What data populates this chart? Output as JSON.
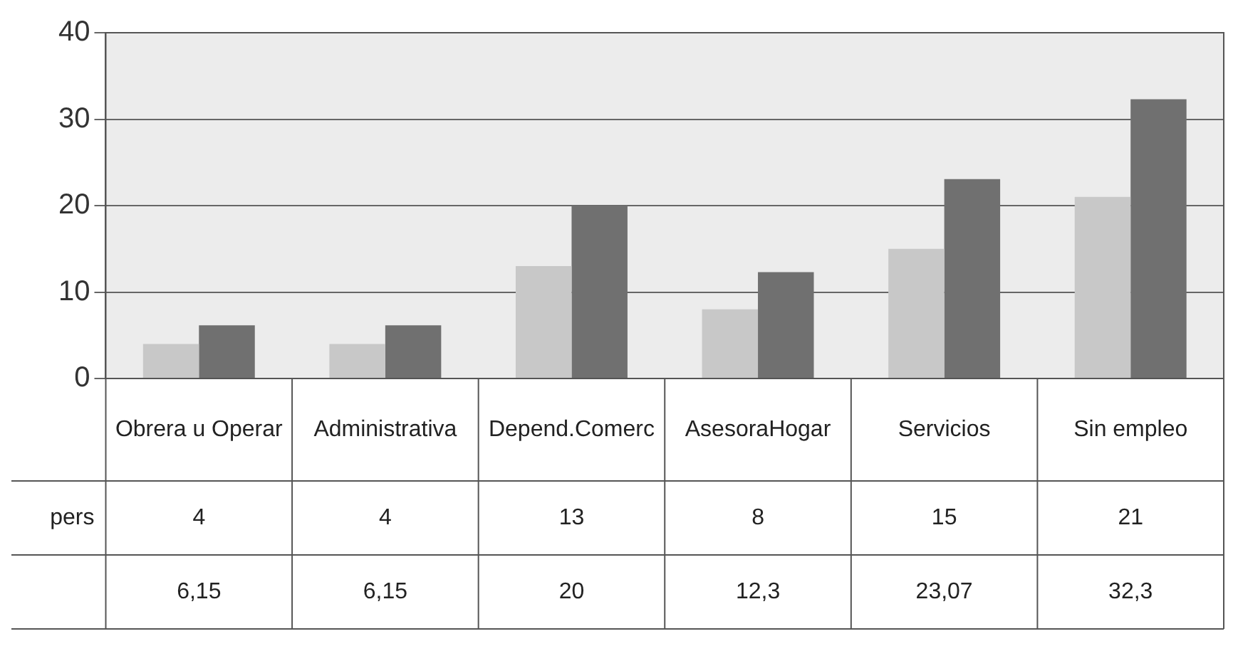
{
  "chart_data": {
    "type": "bar",
    "categories": [
      "Obrera u Operar",
      "Administrativa",
      "Depend.Comerc",
      "AsesoraHogar",
      "Servicios",
      "Sin empleo"
    ],
    "series": [
      {
        "name": "pers",
        "color": "#c8c8c8",
        "values": [
          4,
          4,
          13,
          8,
          15,
          21
        ],
        "value_labels": [
          "4",
          "4",
          "13",
          "8",
          "15",
          "21"
        ]
      },
      {
        "color": "#707070",
        "values": [
          6.15,
          6.15,
          20,
          12.3,
          23.07,
          32.3
        ],
        "value_labels": [
          "6,15",
          "6,15",
          "20",
          "12,3",
          "23,07",
          "32,3"
        ]
      }
    ],
    "ylim": [
      0,
      40
    ],
    "yticks": [
      0,
      10,
      20,
      30,
      40
    ],
    "grid": "y",
    "legend": false
  }
}
